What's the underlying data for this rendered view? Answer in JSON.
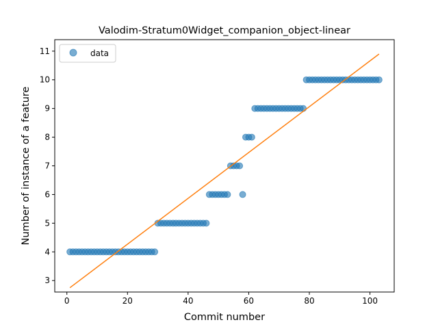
{
  "chart_data": {
    "type": "scatter",
    "title": "Valodim-Stratum0Widget_companion_object-linear",
    "xlabel": "Commit number",
    "ylabel": "Number of instance of a feature",
    "xlim": [
      -4,
      108
    ],
    "ylim": [
      2.6,
      11.4
    ],
    "x_ticks": [
      0,
      20,
      40,
      60,
      80,
      100
    ],
    "y_ticks": [
      3,
      4,
      5,
      6,
      7,
      8,
      9,
      10,
      11
    ],
    "legend": {
      "label": "data",
      "placement": "top-left"
    },
    "series": [
      {
        "name": "data",
        "type": "scatter",
        "color": "#1f77b4",
        "x": [
          1,
          2,
          3,
          4,
          5,
          6,
          7,
          8,
          9,
          10,
          11,
          12,
          13,
          14,
          15,
          16,
          17,
          18,
          19,
          20,
          21,
          22,
          23,
          24,
          25,
          26,
          27,
          28,
          29,
          30,
          31,
          32,
          33,
          34,
          35,
          36,
          37,
          38,
          39,
          40,
          41,
          42,
          43,
          44,
          45,
          46,
          47,
          48,
          49,
          50,
          51,
          52,
          53,
          54,
          55,
          56,
          57,
          58,
          59,
          60,
          61,
          62,
          63,
          64,
          65,
          66,
          67,
          68,
          69,
          70,
          71,
          72,
          73,
          74,
          75,
          76,
          77,
          78,
          79,
          80,
          81,
          82,
          83,
          84,
          85,
          86,
          87,
          88,
          89,
          90,
          91,
          92,
          93,
          94,
          95,
          96,
          97,
          98,
          99,
          100,
          101,
          102,
          103
        ],
        "y": [
          4,
          4,
          4,
          4,
          4,
          4,
          4,
          4,
          4,
          4,
          4,
          4,
          4,
          4,
          4,
          4,
          4,
          4,
          4,
          4,
          4,
          4,
          4,
          4,
          4,
          4,
          4,
          4,
          4,
          5,
          5,
          5,
          5,
          5,
          5,
          5,
          5,
          5,
          5,
          5,
          5,
          5,
          5,
          5,
          5,
          5,
          6,
          6,
          6,
          6,
          6,
          6,
          6,
          7,
          7,
          7,
          7,
          6,
          8,
          8,
          8,
          9,
          9,
          9,
          9,
          9,
          9,
          9,
          9,
          9,
          9,
          9,
          9,
          9,
          9,
          9,
          9,
          9,
          10,
          10,
          10,
          10,
          10,
          10,
          10,
          10,
          10,
          10,
          10,
          10,
          10,
          10,
          10,
          10,
          10,
          10,
          10,
          10,
          10,
          10,
          10,
          10,
          10
        ]
      },
      {
        "name": "",
        "type": "line",
        "color": "#ff7f0e",
        "x": [
          1,
          103
        ],
        "y": [
          2.75,
          10.9
        ]
      }
    ]
  }
}
